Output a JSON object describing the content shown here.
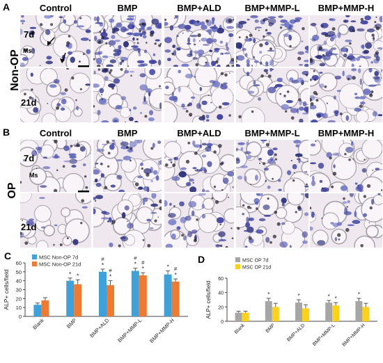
{
  "figure": {
    "panels": {
      "A": "A",
      "B": "B",
      "C": "C",
      "D": "D"
    },
    "columns": [
      "Control",
      "BMP",
      "BMP+ALD",
      "BMP+MMP-L",
      "BMP+MMP-H"
    ],
    "groupA_label": "Non-OP",
    "groupB_label": "OP",
    "rows": [
      "7d",
      "21d"
    ],
    "ms_label": "Ms"
  },
  "chart_data": [
    {
      "type": "bar",
      "panel": "C",
      "ylabel": "ALP+ cells/field",
      "ylim": [
        0,
        60
      ],
      "yticks": [
        0,
        10,
        20,
        30,
        40,
        50,
        60
      ],
      "categories": [
        "Blank",
        "BMP",
        "BMP+ALD",
        "BMP+MMP-L",
        "BMP+MMP-H"
      ],
      "series": [
        {
          "name": "MSC Non-OP 7d",
          "color": "#3ea1d9",
          "values": [
            13,
            40,
            50,
            51,
            47
          ],
          "errors": [
            2,
            3,
            3,
            3,
            4
          ]
        },
        {
          "name": "MSC Non-OP 21d",
          "color": "#ef7a31",
          "values": [
            18,
            36,
            35,
            46,
            39
          ],
          "errors": [
            3,
            5,
            5,
            3,
            3
          ]
        }
      ],
      "annotations": [
        {
          "category": "BMP",
          "series": 0,
          "marks": [
            "*"
          ]
        },
        {
          "category": "BMP",
          "series": 1,
          "marks": [
            "*"
          ]
        },
        {
          "category": "BMP+ALD",
          "series": 0,
          "marks": [
            "#",
            "*"
          ]
        },
        {
          "category": "BMP+ALD",
          "series": 1,
          "marks": [
            "#",
            "*"
          ]
        },
        {
          "category": "BMP+MMP-L",
          "series": 0,
          "marks": [
            "#",
            "*"
          ]
        },
        {
          "category": "BMP+MMP-L",
          "series": 1,
          "marks": [
            "#",
            "*"
          ]
        },
        {
          "category": "BMP+MMP-H",
          "series": 0,
          "marks": [
            "*"
          ]
        },
        {
          "category": "BMP+MMP-H",
          "series": 1,
          "marks": [
            "#",
            "*"
          ]
        }
      ],
      "legend_position": "top-left",
      "grid": false
    },
    {
      "type": "bar",
      "panel": "D",
      "ylabel": "ALP+ cells/field",
      "ylim": [
        0,
        60
      ],
      "yticks": [
        0,
        20,
        40,
        60
      ],
      "categories": [
        "Blank",
        "BMP",
        "BMP+ALD",
        "BMP+MMP-L",
        "BMP+MMP-H"
      ],
      "series": [
        {
          "name": "MSC OP 7d",
          "color": "#a6a6a6",
          "values": [
            12,
            28,
            26,
            26,
            28
          ],
          "errors": [
            2,
            4,
            4,
            3,
            4
          ]
        },
        {
          "name": "MSC OP 21d",
          "color": "#ffd11a",
          "values": [
            12,
            20,
            18,
            22,
            20
          ],
          "errors": [
            2,
            5,
            5,
            4,
            5
          ]
        }
      ],
      "annotations": [
        {
          "category": "BMP",
          "series": 0,
          "marks": [
            "*"
          ]
        },
        {
          "category": "BMP+ALD",
          "series": 0,
          "marks": [
            "*"
          ]
        },
        {
          "category": "BMP+MMP-L",
          "series": 0,
          "marks": [
            "*"
          ]
        },
        {
          "category": "BMP+MMP-L",
          "series": 1,
          "marks": [
            "*"
          ]
        },
        {
          "category": "BMP+MMP-H",
          "series": 0,
          "marks": [
            "*"
          ]
        }
      ],
      "legend_position": "top-left",
      "grid": false
    }
  ]
}
